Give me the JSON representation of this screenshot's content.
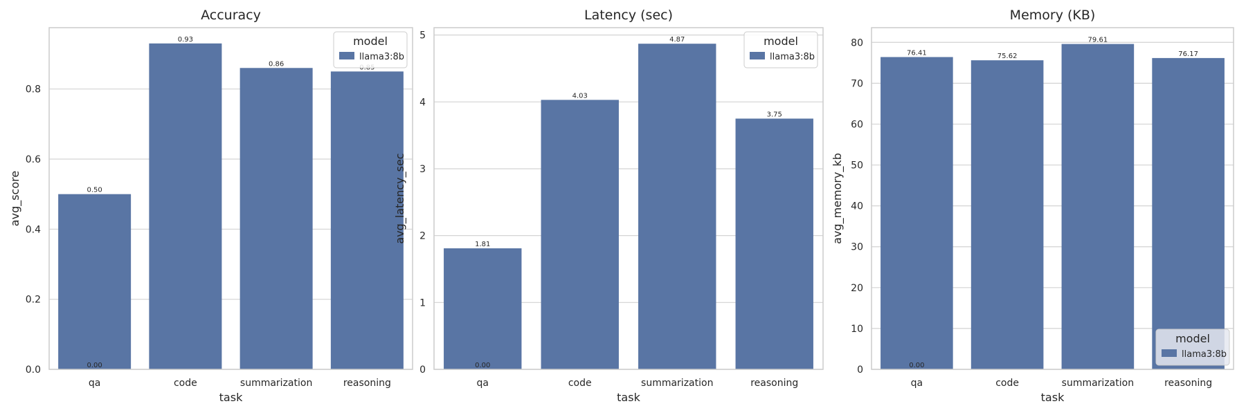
{
  "chart_data": [
    {
      "type": "bar",
      "title": "Accuracy",
      "xlabel": "task",
      "ylabel": "avg_score",
      "categories": [
        "qa",
        "code",
        "summarization",
        "reasoning"
      ],
      "series": [
        {
          "name": "llama3:8b",
          "values": [
            0.5,
            0.93,
            0.86,
            0.85
          ]
        }
      ],
      "bar_labels": [
        "0.50",
        "0.93",
        "0.86",
        "0.85"
      ],
      "zero_label": "0.00",
      "ylim": [
        0,
        0.975
      ],
      "yticks": [
        0.0,
        0.2,
        0.4,
        0.6,
        0.8
      ],
      "ytick_labels": [
        "0.0",
        "0.2",
        "0.4",
        "0.6",
        "0.8"
      ],
      "legend": {
        "title": "model",
        "placement": "upper-right",
        "entries": [
          "llama3:8b"
        ]
      },
      "grid": "y"
    },
    {
      "type": "bar",
      "title": "Latency (sec)",
      "xlabel": "task",
      "ylabel": "avg_latency_sec",
      "categories": [
        "qa",
        "code",
        "summarization",
        "reasoning"
      ],
      "series": [
        {
          "name": "llama3:8b",
          "values": [
            1.81,
            4.03,
            4.87,
            3.75
          ]
        }
      ],
      "bar_labels": [
        "1.81",
        "4.03",
        "4.87",
        "3.75"
      ],
      "zero_label": "0.00",
      "ylim": [
        0,
        5.11
      ],
      "yticks": [
        0,
        1,
        2,
        3,
        4,
        5
      ],
      "ytick_labels": [
        "0",
        "1",
        "2",
        "3",
        "4",
        "5"
      ],
      "legend": {
        "title": "model",
        "placement": "upper-right",
        "entries": [
          "llama3:8b"
        ]
      },
      "grid": "y"
    },
    {
      "type": "bar",
      "title": "Memory (KB)",
      "xlabel": "task",
      "ylabel": "avg_memory_kb",
      "categories": [
        "qa",
        "code",
        "summarization",
        "reasoning"
      ],
      "series": [
        {
          "name": "llama3:8b",
          "values": [
            76.41,
            75.62,
            79.61,
            76.17
          ]
        }
      ],
      "bar_labels": [
        "76.41",
        "75.62",
        "79.61",
        "76.17"
      ],
      "zero_label": "0.00",
      "ylim": [
        0,
        83.6
      ],
      "yticks": [
        0,
        10,
        20,
        30,
        40,
        50,
        60,
        70,
        80
      ],
      "ytick_labels": [
        "0",
        "10",
        "20",
        "30",
        "40",
        "50",
        "60",
        "70",
        "80"
      ],
      "legend": {
        "title": "model",
        "placement": "lower-right",
        "entries": [
          "llama3:8b"
        ]
      },
      "grid": "y"
    }
  ],
  "colors": {
    "bar": "#5975a4",
    "grid": "#d3d3d3",
    "spine": "#cccccc",
    "text": "#262626",
    "legend_box_lower": "#e5e8f0"
  }
}
